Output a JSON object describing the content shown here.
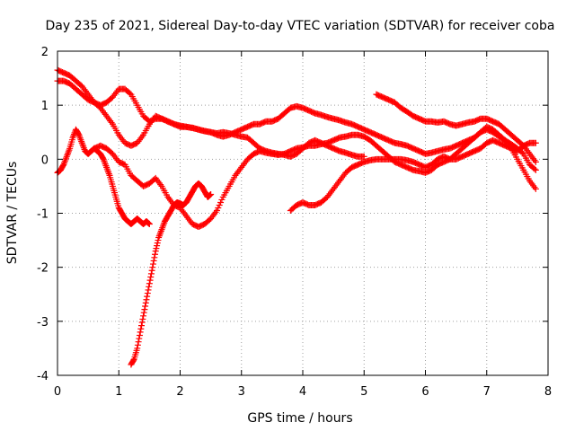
{
  "chart_data": {
    "type": "scatter",
    "title": "Day 235 of 2021, Sidereal Day-to-day VTEC variation (SDTVAR) for receiver coba",
    "xlabel": "GPS time / hours",
    "ylabel": "SDTVAR / TECUs",
    "xlim": [
      0,
      8
    ],
    "ylim": [
      -4,
      2
    ],
    "x_ticks": [
      "0",
      "1",
      "2",
      "3",
      "4",
      "5",
      "6",
      "7",
      "8"
    ],
    "y_ticks": [
      "-4",
      "-3",
      "-2",
      "-1",
      "0",
      "1",
      "2"
    ],
    "grid": true,
    "marker": "+",
    "color": "#ff0000",
    "series": [
      {
        "x": [
          0.0,
          0.1,
          0.2,
          0.3,
          0.4,
          0.5,
          0.6,
          0.7,
          0.8,
          0.9,
          1.0,
          1.1,
          1.2,
          1.3,
          1.4,
          1.5,
          1.6,
          1.7,
          1.8,
          1.9,
          2.0,
          2.1,
          2.2,
          2.3,
          2.4,
          2.5,
          2.6,
          2.7,
          2.8,
          2.9,
          3.0,
          3.1,
          3.2,
          3.3,
          3.4,
          3.5,
          3.6,
          3.7,
          3.8,
          3.9,
          4.0,
          4.1,
          4.2,
          4.3,
          4.4,
          4.5,
          4.6,
          4.7,
          4.8,
          4.9,
          5.0,
          5.1,
          5.2,
          5.3,
          5.4,
          5.5,
          5.6,
          5.7,
          5.8,
          5.9,
          6.0,
          6.1,
          6.2,
          6.3,
          6.4,
          6.5,
          6.6,
          6.7,
          6.8,
          6.9,
          7.0,
          7.1,
          7.2,
          7.3,
          7.4,
          7.5,
          7.6,
          7.7,
          7.8
        ],
        "y": [
          1.45,
          1.45,
          1.4,
          1.3,
          1.2,
          1.1,
          1.05,
          1.0,
          1.05,
          1.15,
          1.3,
          1.3,
          1.2,
          1.0,
          0.8,
          0.7,
          0.75,
          0.75,
          0.7,
          0.65,
          0.6,
          0.6,
          0.58,
          0.55,
          0.52,
          0.5,
          0.45,
          0.42,
          0.45,
          0.5,
          0.55,
          0.6,
          0.65,
          0.65,
          0.7,
          0.7,
          0.75,
          0.85,
          0.95,
          0.98,
          0.95,
          0.9,
          0.85,
          0.82,
          0.78,
          0.75,
          0.72,
          0.68,
          0.65,
          0.6,
          0.55,
          0.5,
          0.45,
          0.4,
          0.35,
          0.3,
          0.28,
          0.25,
          0.2,
          0.15,
          0.1,
          0.12,
          0.15,
          0.18,
          0.2,
          0.25,
          0.3,
          0.35,
          0.4,
          0.5,
          0.55,
          0.5,
          0.42,
          0.35,
          0.28,
          0.2,
          0.1,
          -0.1,
          -0.2
        ]
      },
      {
        "x": [
          0.0,
          0.05,
          0.1,
          0.15,
          0.2,
          0.25,
          0.3,
          0.35,
          0.4,
          0.45,
          0.5,
          0.55,
          0.6,
          0.65,
          0.7,
          0.75,
          0.8,
          0.85,
          0.9,
          0.95,
          1.0,
          1.05,
          1.1,
          1.15,
          1.2,
          1.25,
          1.3,
          1.35,
          1.4,
          1.45,
          1.5
        ],
        "y": [
          -0.25,
          -0.2,
          -0.1,
          0.05,
          0.2,
          0.4,
          0.55,
          0.45,
          0.3,
          0.15,
          0.1,
          0.15,
          0.2,
          0.15,
          0.1,
          0.0,
          -0.15,
          -0.3,
          -0.5,
          -0.7,
          -0.9,
          -1.0,
          -1.1,
          -1.15,
          -1.2,
          -1.15,
          -1.1,
          -1.15,
          -1.2,
          -1.15,
          -1.2
        ]
      },
      {
        "x": [
          1.2,
          1.25,
          1.3,
          1.35,
          1.4,
          1.45,
          1.5,
          1.55,
          1.6,
          1.65,
          1.7,
          1.75,
          1.8,
          1.85,
          1.9,
          1.95,
          2.0,
          2.05,
          2.1,
          2.15,
          2.2,
          2.25,
          2.3,
          2.35,
          2.4,
          2.45,
          2.5
        ],
        "y": [
          -3.8,
          -3.7,
          -3.5,
          -3.2,
          -2.9,
          -2.6,
          -2.3,
          -2.0,
          -1.7,
          -1.45,
          -1.3,
          -1.15,
          -1.05,
          -0.95,
          -0.85,
          -0.8,
          -0.82,
          -0.85,
          -0.8,
          -0.7,
          -0.6,
          -0.5,
          -0.45,
          -0.5,
          -0.6,
          -0.7,
          -0.65
        ]
      },
      {
        "x": [
          0.6,
          0.7,
          0.8,
          0.9,
          1.0,
          1.1,
          1.2,
          1.3,
          1.4,
          1.5,
          1.6,
          1.7,
          1.8,
          1.9,
          2.0,
          2.1,
          2.2,
          2.3,
          2.4,
          2.5,
          2.6,
          2.7,
          2.8,
          2.9,
          3.0,
          3.1,
          3.2,
          3.3,
          3.4,
          3.5,
          3.6,
          3.7,
          3.8,
          3.9,
          4.0,
          4.1,
          4.2,
          4.3,
          4.4,
          4.5,
          4.6,
          4.7,
          4.8,
          4.9,
          5.0,
          5.1,
          5.2,
          5.3,
          5.4,
          5.5,
          5.6,
          5.7,
          5.8,
          5.9,
          6.0,
          6.1,
          6.2,
          6.3,
          6.4,
          6.5,
          6.6,
          6.7,
          6.8,
          6.9,
          7.0,
          7.1,
          7.2,
          7.3,
          7.4,
          7.5,
          7.6,
          7.7,
          7.8
        ],
        "y": [
          0.2,
          0.25,
          0.2,
          0.1,
          -0.05,
          -0.1,
          -0.3,
          -0.4,
          -0.5,
          -0.45,
          -0.35,
          -0.5,
          -0.7,
          -0.85,
          -0.9,
          -1.05,
          -1.2,
          -1.25,
          -1.2,
          -1.1,
          -0.95,
          -0.7,
          -0.5,
          -0.3,
          -0.15,
          0.0,
          0.1,
          0.15,
          0.12,
          0.1,
          0.08,
          0.1,
          0.15,
          0.2,
          0.22,
          0.25,
          0.25,
          0.28,
          0.3,
          0.35,
          0.4,
          0.42,
          0.45,
          0.45,
          0.42,
          0.35,
          0.25,
          0.15,
          0.05,
          -0.05,
          -0.1,
          -0.15,
          -0.2,
          -0.22,
          -0.25,
          -0.2,
          -0.1,
          -0.05,
          0.0,
          0.1,
          0.2,
          0.3,
          0.4,
          0.5,
          0.6,
          0.55,
          0.45,
          0.35,
          0.2,
          0.0,
          -0.2,
          -0.4,
          -0.55
        ]
      },
      {
        "x": [
          0.0,
          0.1,
          0.2,
          0.3,
          0.4,
          0.5,
          0.6,
          0.7,
          0.8,
          0.9,
          1.0,
          1.1,
          1.2,
          1.3,
          1.4,
          1.5,
          1.6,
          1.7,
          1.8,
          1.9,
          2.0,
          2.1,
          2.2,
          2.3,
          2.4,
          2.5,
          2.6,
          2.7,
          2.8,
          2.9,
          3.0,
          3.1,
          3.2,
          3.3,
          3.4,
          3.5,
          3.6,
          3.7,
          3.8,
          3.9,
          4.0,
          4.1,
          4.2,
          4.3,
          4.4,
          4.5,
          4.6,
          4.7,
          4.8,
          4.9,
          5.0
        ],
        "y": [
          1.65,
          1.6,
          1.55,
          1.45,
          1.35,
          1.2,
          1.05,
          0.95,
          0.8,
          0.65,
          0.45,
          0.3,
          0.25,
          0.3,
          0.45,
          0.65,
          0.8,
          0.75,
          0.7,
          0.65,
          0.62,
          0.6,
          0.58,
          0.55,
          0.52,
          0.5,
          0.48,
          0.5,
          0.48,
          0.45,
          0.42,
          0.4,
          0.3,
          0.2,
          0.15,
          0.12,
          0.1,
          0.08,
          0.05,
          0.1,
          0.2,
          0.3,
          0.35,
          0.3,
          0.25,
          0.2,
          0.15,
          0.12,
          0.08,
          0.05,
          0.05
        ]
      },
      {
        "x": [
          3.8,
          3.9,
          4.0,
          4.1,
          4.2,
          4.3,
          4.4,
          4.5,
          4.6,
          4.7,
          4.8,
          4.9,
          5.0,
          5.1,
          5.2,
          5.3,
          5.4,
          5.5,
          5.6,
          5.7,
          5.8,
          5.9,
          6.0,
          6.1,
          6.2,
          6.3,
          6.4,
          6.5,
          6.6,
          6.7,
          6.8,
          6.9,
          7.0,
          7.1,
          7.2,
          7.3,
          7.4,
          7.5,
          7.6,
          7.7,
          7.8
        ],
        "y": [
          -0.95,
          -0.85,
          -0.8,
          -0.85,
          -0.85,
          -0.8,
          -0.7,
          -0.55,
          -0.4,
          -0.25,
          -0.15,
          -0.1,
          -0.05,
          -0.02,
          0.0,
          0.0,
          0.0,
          0.0,
          0.0,
          -0.02,
          -0.05,
          -0.1,
          -0.15,
          -0.1,
          0.0,
          0.05,
          0.0,
          0.0,
          0.05,
          0.1,
          0.15,
          0.2,
          0.3,
          0.35,
          0.3,
          0.25,
          0.2,
          0.15,
          0.25,
          0.3,
          0.3
        ]
      },
      {
        "x": [
          5.2,
          5.3,
          5.4,
          5.5,
          5.6,
          5.7,
          5.8,
          5.9,
          6.0,
          6.1,
          6.2,
          6.3,
          6.4,
          6.5,
          6.6,
          6.7,
          6.8,
          6.9,
          7.0,
          7.1,
          7.2,
          7.3,
          7.4,
          7.5,
          7.6,
          7.7,
          7.8
        ],
        "y": [
          1.2,
          1.15,
          1.1,
          1.05,
          0.95,
          0.88,
          0.8,
          0.75,
          0.7,
          0.7,
          0.68,
          0.7,
          0.65,
          0.62,
          0.65,
          0.68,
          0.7,
          0.75,
          0.75,
          0.7,
          0.65,
          0.55,
          0.45,
          0.35,
          0.25,
          0.1,
          -0.05
        ]
      }
    ]
  }
}
